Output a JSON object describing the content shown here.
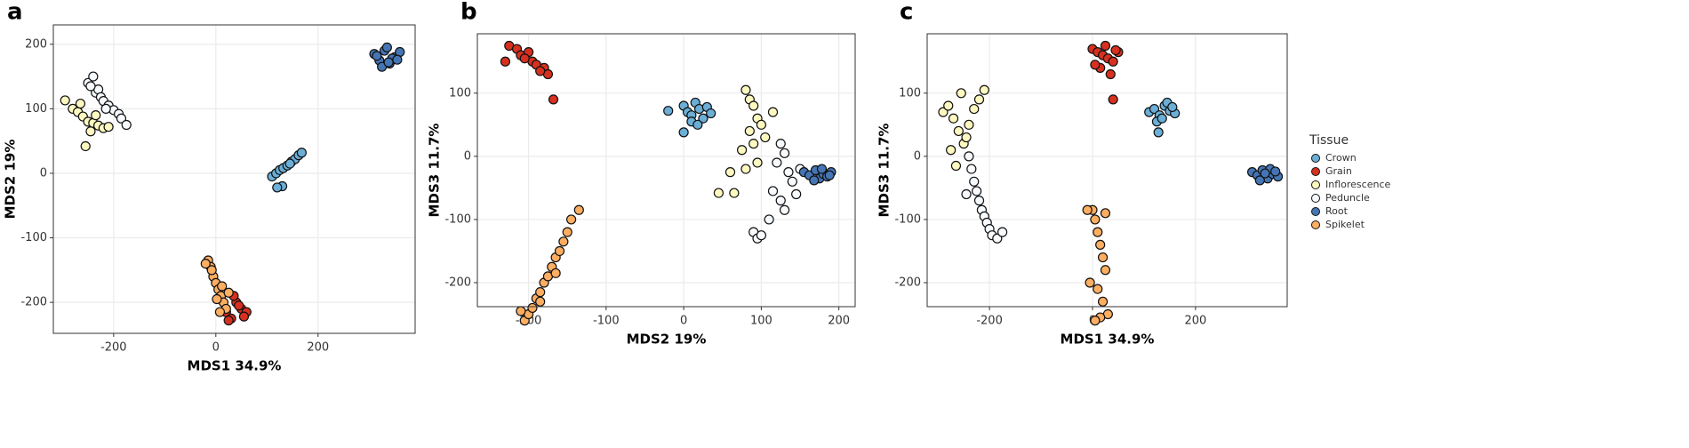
{
  "chart_data": [
    {
      "type": "scatter",
      "panel": "a",
      "xlabel": "MDS1 34.9%",
      "ylabel": "MDS2 19%",
      "xlim": [
        -318,
        390
      ],
      "ylim": [
        -248,
        230
      ],
      "xticks": [
        -200,
        0,
        200
      ],
      "yticks": [
        -200,
        -100,
        0,
        100,
        200
      ],
      "grid": true,
      "series": [
        {
          "name": "Crown",
          "color": "#6baed6",
          "x": [
            110,
            118,
            125,
            132,
            140,
            148,
            155,
            162,
            168,
            130,
            145,
            120
          ],
          "y": [
            -5,
            0,
            5,
            8,
            12,
            18,
            22,
            28,
            32,
            -20,
            15,
            -22
          ]
        },
        {
          "name": "Grain",
          "color": "#d7301f",
          "x": [
            10,
            20,
            30,
            40,
            50,
            60,
            25,
            35,
            45,
            55
          ],
          "y": [
            -195,
            -215,
            -225,
            -200,
            -210,
            -215,
            -228,
            -190,
            -205,
            -222
          ]
        },
        {
          "name": "Inflorescence",
          "color": "#fdf8c0",
          "x": [
            -295,
            -280,
            -270,
            -260,
            -250,
            -240,
            -230,
            -220,
            -210,
            -265,
            -245,
            -255,
            -235
          ],
          "y": [
            113,
            100,
            95,
            88,
            80,
            78,
            74,
            70,
            72,
            108,
            65,
            42,
            90
          ]
        },
        {
          "name": "Peduncle",
          "color": "#f7fbff",
          "x": [
            -250,
            -240,
            -235,
            -230,
            -225,
            -220,
            -245,
            -210,
            -200,
            -190,
            -185,
            -175,
            -215
          ],
          "y": [
            140,
            150,
            125,
            130,
            118,
            112,
            135,
            105,
            98,
            92,
            85,
            75,
            100
          ]
        },
        {
          "name": "Root",
          "color": "#4575b4",
          "x": [
            310,
            320,
            330,
            340,
            350,
            360,
            325,
            345,
            335,
            315,
            355,
            338
          ],
          "y": [
            185,
            175,
            190,
            170,
            180,
            188,
            165,
            178,
            195,
            182,
            176,
            172
          ]
        },
        {
          "name": "Spikelet",
          "color": "#fdae61",
          "x": [
            -15,
            -10,
            -5,
            0,
            5,
            10,
            15,
            20,
            -8,
            2,
            12,
            25,
            -20,
            8
          ],
          "y": [
            -135,
            -145,
            -160,
            -170,
            -180,
            -190,
            -200,
            -210,
            -150,
            -195,
            -175,
            -185,
            -140,
            -215
          ]
        }
      ]
    },
    {
      "type": "scatter",
      "panel": "b",
      "xlabel": "MDS2 19%",
      "ylabel": "MDS3 11.7%",
      "xlim": [
        -266,
        221
      ],
      "ylim": [
        -238,
        194
      ],
      "xticks": [
        -200,
        -100,
        0,
        100,
        200
      ],
      "yticks": [
        -200,
        -100,
        0,
        100
      ],
      "grid": true,
      "series": [
        {
          "name": "Crown",
          "color": "#6baed6",
          "x": [
            -20,
            0,
            5,
            10,
            15,
            20,
            25,
            30,
            35,
            10,
            0,
            18
          ],
          "y": [
            72,
            80,
            70,
            65,
            85,
            75,
            60,
            78,
            68,
            55,
            38,
            50
          ]
        },
        {
          "name": "Grain",
          "color": "#d7301f",
          "x": [
            -225,
            -215,
            -210,
            -200,
            -195,
            -190,
            -180,
            -175,
            -205,
            -185,
            -230,
            -168
          ],
          "y": [
            175,
            170,
            160,
            165,
            150,
            145,
            140,
            130,
            155,
            135,
            150,
            90
          ]
        },
        {
          "name": "Inflorescence",
          "color": "#fdf8c0",
          "x": [
            80,
            85,
            90,
            95,
            100,
            85,
            90,
            75,
            105,
            95,
            80,
            115,
            45,
            65,
            60
          ],
          "y": [
            105,
            90,
            80,
            60,
            50,
            40,
            20,
            10,
            30,
            -10,
            -20,
            70,
            -58,
            -58,
            -25
          ]
        },
        {
          "name": "Peduncle",
          "color": "#f7fbff",
          "x": [
            125,
            130,
            120,
            135,
            140,
            115,
            125,
            130,
            110,
            145,
            90,
            95,
            100,
            150
          ],
          "y": [
            20,
            5,
            -10,
            -25,
            -40,
            -55,
            -70,
            -85,
            -100,
            -60,
            -120,
            -130,
            -125,
            -20
          ]
        },
        {
          "name": "Root",
          "color": "#4575b4",
          "x": [
            155,
            162,
            170,
            175,
            180,
            185,
            190,
            168,
            178,
            188
          ],
          "y": [
            -25,
            -30,
            -22,
            -35,
            -28,
            -32,
            -25,
            -38,
            -20,
            -30
          ]
        },
        {
          "name": "Spikelet",
          "color": "#fdae61",
          "x": [
            -205,
            -200,
            -195,
            -190,
            -185,
            -180,
            -175,
            -170,
            -165,
            -160,
            -155,
            -150,
            -145,
            -135,
            -210,
            -185,
            -165
          ],
          "y": [
            -260,
            -250,
            -240,
            -225,
            -215,
            -200,
            -190,
            -175,
            -160,
            -150,
            -135,
            -120,
            -100,
            -85,
            -245,
            -230,
            -185
          ]
        }
      ]
    },
    {
      "type": "scatter",
      "panel": "c",
      "xlabel": "MDS1 34.9%",
      "ylabel": "MDS3 11.7%",
      "xlim": [
        -321,
        378
      ],
      "ylim": [
        -238,
        194
      ],
      "xticks": [
        -200,
        0,
        200
      ],
      "yticks": [
        -200,
        -100,
        0,
        100
      ],
      "grid": true,
      "legend_title": "Tissue",
      "legend": "right",
      "series": [
        {
          "name": "Crown",
          "color": "#6baed6",
          "x": [
            110,
            120,
            130,
            140,
            150,
            160,
            125,
            145,
            135,
            155,
            128
          ],
          "y": [
            70,
            75,
            65,
            80,
            72,
            68,
            55,
            85,
            60,
            78,
            38
          ]
        },
        {
          "name": "Grain",
          "color": "#d7301f",
          "x": [
            0,
            10,
            20,
            30,
            40,
            50,
            15,
            35,
            25,
            5,
            45,
            40
          ],
          "y": [
            170,
            165,
            160,
            155,
            150,
            165,
            140,
            130,
            175,
            145,
            168,
            90
          ]
        },
        {
          "name": "Inflorescence",
          "color": "#fdf8c0",
          "x": [
            -290,
            -280,
            -270,
            -260,
            -250,
            -240,
            -230,
            -220,
            -210,
            -275,
            -265,
            -245,
            -255
          ],
          "y": [
            70,
            80,
            60,
            40,
            20,
            50,
            75,
            90,
            105,
            10,
            -15,
            30,
            100
          ]
        },
        {
          "name": "Peduncle",
          "color": "#f7fbff",
          "x": [
            -240,
            -235,
            -230,
            -225,
            -220,
            -215,
            -210,
            -205,
            -200,
            -195,
            -185,
            -175,
            -245
          ],
          "y": [
            0,
            -20,
            -40,
            -55,
            -70,
            -85,
            -95,
            -105,
            -115,
            -125,
            -130,
            -120,
            -60
          ]
        },
        {
          "name": "Root",
          "color": "#4575b4",
          "x": [
            310,
            320,
            330,
            340,
            350,
            360,
            325,
            345,
            335,
            355
          ],
          "y": [
            -25,
            -30,
            -22,
            -35,
            -28,
            -32,
            -38,
            -20,
            -27,
            -24
          ]
        },
        {
          "name": "Spikelet",
          "color": "#fdae61",
          "x": [
            0,
            5,
            10,
            15,
            20,
            25,
            -5,
            10,
            20,
            30,
            15,
            5,
            -10,
            25
          ],
          "y": [
            -85,
            -100,
            -120,
            -140,
            -160,
            -180,
            -200,
            -210,
            -230,
            -250,
            -255,
            -260,
            -85,
            -90
          ]
        }
      ]
    }
  ]
}
